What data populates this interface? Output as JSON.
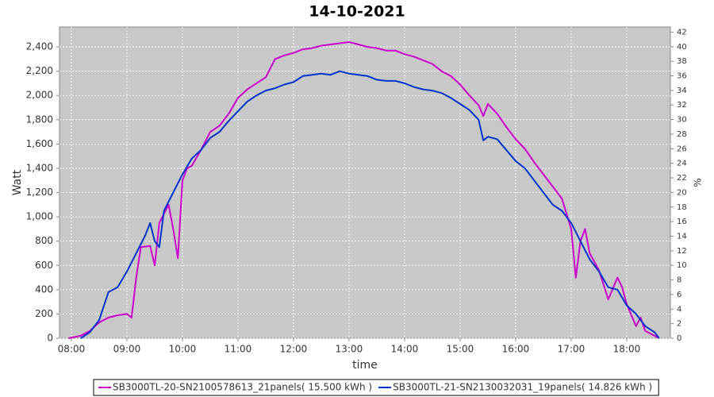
{
  "chart_data": {
    "type": "line",
    "title": "14-10-2021",
    "x_label": "time",
    "y_label": "Watt",
    "y2_label": "%",
    "xlim": [
      7.786,
      18.786
    ],
    "xticks": [
      {
        "value": 8,
        "label": "08:00"
      },
      {
        "value": 9,
        "label": "09:00"
      },
      {
        "value": 10,
        "label": "10:00"
      },
      {
        "value": 11,
        "label": "11:00"
      },
      {
        "value": 12,
        "label": "12:00"
      },
      {
        "value": 13,
        "label": "13:00"
      },
      {
        "value": 14,
        "label": "14:00"
      },
      {
        "value": 15,
        "label": "15:00"
      },
      {
        "value": 16,
        "label": "16:00"
      },
      {
        "value": 17,
        "label": "17:00"
      },
      {
        "value": 18,
        "label": "18:00"
      }
    ],
    "ylim": [
      0,
      2564
    ],
    "yticks": [
      0,
      200,
      400,
      600,
      800,
      {
        "value": 1000,
        "label": "1,000"
      },
      {
        "value": 1200,
        "label": "1,200"
      },
      {
        "value": 1400,
        "label": "1,400"
      },
      {
        "value": 1600,
        "label": "1,600"
      },
      {
        "value": 1800,
        "label": "1,800"
      },
      {
        "value": 2000,
        "label": "2,000"
      },
      {
        "value": 2200,
        "label": "2,200"
      },
      {
        "value": 2400,
        "label": "2,400"
      }
    ],
    "y2lim": [
      0,
      42.7
    ],
    "y2ticks": [
      0,
      2,
      4,
      6,
      8,
      10,
      12,
      14,
      16,
      18,
      20,
      22,
      24,
      26,
      28,
      30,
      32,
      34,
      36,
      38,
      40,
      42
    ],
    "grid": true,
    "background": "#c8c8c8",
    "legend": "bottom",
    "series": [
      {
        "name": "SB3000TL-20-SN2100578613_21panels( 15.500 kWh )",
        "color": "#cc00cc",
        "x": [
          7.95,
          8.167,
          8.333,
          8.5,
          8.667,
          8.833,
          9,
          9.083,
          9.167,
          9.25,
          9.417,
          9.5,
          9.583,
          9.75,
          9.833,
          9.917,
          10,
          10.083,
          10.167,
          10.333,
          10.5,
          10.667,
          10.833,
          11,
          11.167,
          11.333,
          11.5,
          11.667,
          11.833,
          12,
          12.167,
          12.333,
          12.5,
          12.667,
          12.833,
          13,
          13.167,
          13.333,
          13.5,
          13.667,
          13.833,
          14,
          14.167,
          14.333,
          14.5,
          14.667,
          14.833,
          15,
          15.167,
          15.333,
          15.417,
          15.5,
          15.667,
          15.833,
          16,
          16.167,
          16.333,
          16.5,
          16.667,
          16.833,
          17,
          17.083,
          17.167,
          17.25,
          17.333,
          17.5,
          17.667,
          17.833,
          17.917,
          18,
          18.167,
          18.25,
          18.333,
          18.5,
          18.583
        ],
        "values": [
          0,
          20,
          60,
          130,
          170,
          190,
          200,
          170,
          500,
          750,
          760,
          600,
          950,
          1100,
          900,
          660,
          1300,
          1400,
          1420,
          1550,
          1700,
          1750,
          1850,
          1980,
          2050,
          2100,
          2150,
          2300,
          2330,
          2350,
          2380,
          2390,
          2410,
          2420,
          2430,
          2440,
          2420,
          2400,
          2390,
          2370,
          2370,
          2340,
          2320,
          2290,
          2260,
          2200,
          2160,
          2090,
          2000,
          1920,
          1830,
          1930,
          1850,
          1740,
          1640,
          1560,
          1450,
          1350,
          1250,
          1150,
          900,
          500,
          800,
          900,
          700,
          560,
          320,
          500,
          420,
          280,
          100,
          170,
          60,
          20,
          0
        ]
      },
      {
        "name": "SB3000TL-21-SN2130032031_19panels( 14.826 kWh )",
        "color": "#0033cc",
        "x": [
          8.167,
          8.333,
          8.5,
          8.667,
          8.833,
          9,
          9.167,
          9.333,
          9.417,
          9.5,
          9.583,
          9.667,
          9.833,
          10,
          10.167,
          10.333,
          10.5,
          10.667,
          10.833,
          11,
          11.167,
          11.333,
          11.5,
          11.667,
          11.833,
          12,
          12.167,
          12.333,
          12.5,
          12.667,
          12.833,
          13,
          13.167,
          13.333,
          13.5,
          13.667,
          13.833,
          14,
          14.167,
          14.333,
          14.5,
          14.667,
          14.833,
          15,
          15.167,
          15.333,
          15.417,
          15.5,
          15.667,
          15.833,
          16,
          16.167,
          16.333,
          16.5,
          16.667,
          16.833,
          17,
          17.167,
          17.333,
          17.5,
          17.667,
          17.833,
          18,
          18.167,
          18.333,
          18.5,
          18.583
        ],
        "values": [
          0,
          50,
          150,
          380,
          420,
          550,
          700,
          850,
          950,
          800,
          750,
          1050,
          1200,
          1350,
          1480,
          1550,
          1650,
          1700,
          1790,
          1870,
          1950,
          2000,
          2040,
          2060,
          2090,
          2110,
          2160,
          2170,
          2180,
          2170,
          2200,
          2180,
          2170,
          2160,
          2130,
          2120,
          2120,
          2100,
          2070,
          2050,
          2040,
          2020,
          1980,
          1930,
          1880,
          1800,
          1630,
          1660,
          1640,
          1550,
          1460,
          1400,
          1300,
          1200,
          1100,
          1050,
          950,
          800,
          650,
          550,
          420,
          400,
          270,
          200,
          100,
          50,
          0
        ]
      }
    ]
  }
}
